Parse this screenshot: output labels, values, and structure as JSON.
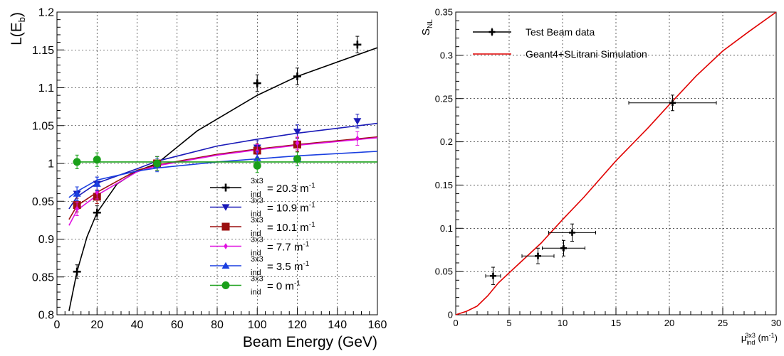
{
  "chart_data": [
    {
      "type": "scatter",
      "xlabel": "Beam Energy (GeV)",
      "ylabel": "L(E_b)",
      "xlim": [
        0,
        160
      ],
      "ylim": [
        0.8,
        1.2
      ],
      "xticks": [
        0,
        20,
        40,
        60,
        80,
        100,
        120,
        140,
        160
      ],
      "yticks": [
        0.8,
        0.85,
        0.9,
        0.95,
        1,
        1.05,
        1.1,
        1.15,
        1.2
      ],
      "grid": true,
      "legend_placement": "bottom-right",
      "legend_entry_prefix": "3x3",
      "legend_entry_subscript": "ind",
      "series": [
        {
          "name": "= 20.3 m-1",
          "color": "#000000",
          "marker": "cross",
          "points": [
            {
              "x": 10,
              "y": 0.857,
              "yerr": 0.009
            },
            {
              "x": 20,
              "y": 0.935,
              "yerr": 0.009
            },
            {
              "x": 50,
              "y": 1.0,
              "yerr": 0.009
            },
            {
              "x": 100,
              "y": 1.106,
              "yerr": 0.011
            },
            {
              "x": 120,
              "y": 1.115,
              "yerr": 0.011
            },
            {
              "x": 150,
              "y": 1.157,
              "yerr": 0.011
            }
          ],
          "curve": [
            [
              6,
              0.805
            ],
            [
              10,
              0.857
            ],
            [
              15,
              0.903
            ],
            [
              20,
              0.935
            ],
            [
              30,
              0.973
            ],
            [
              40,
              0.99
            ],
            [
              50,
              1.0
            ],
            [
              70,
              1.043
            ],
            [
              100,
              1.09
            ],
            [
              120,
              1.115
            ],
            [
              160,
              1.153
            ]
          ]
        },
        {
          "name": "= 10.9 m-1",
          "color": "#1a1ab8",
          "marker": "triangle-down",
          "points": [
            {
              "x": 10,
              "y": 0.96,
              "yerr": 0.009
            },
            {
              "x": 20,
              "y": 0.973,
              "yerr": 0.009
            },
            {
              "x": 50,
              "y": 1.0,
              "yerr": 0.009
            },
            {
              "x": 100,
              "y": 1.021,
              "yerr": 0.009
            },
            {
              "x": 120,
              "y": 1.042,
              "yerr": 0.009
            },
            {
              "x": 150,
              "y": 1.056,
              "yerr": 0.009
            }
          ],
          "curve": [
            [
              6,
              0.94
            ],
            [
              10,
              0.956
            ],
            [
              20,
              0.974
            ],
            [
              40,
              0.993
            ],
            [
              50,
              1.003
            ],
            [
              80,
              1.023
            ],
            [
              100,
              1.032
            ],
            [
              120,
              1.04
            ],
            [
              160,
              1.053
            ]
          ]
        },
        {
          "name": "= 10.1 m-1",
          "color": "#9b0f0f",
          "marker": "square",
          "points": [
            {
              "x": 10,
              "y": 0.945,
              "yerr": 0.009
            },
            {
              "x": 20,
              "y": 0.956,
              "yerr": 0.009
            },
            {
              "x": 50,
              "y": 1.0,
              "yerr": 0.009
            },
            {
              "x": 100,
              "y": 1.017,
              "yerr": 0.009
            },
            {
              "x": 120,
              "y": 1.025,
              "yerr": 0.009
            }
          ],
          "curve": [
            [
              6,
              0.926
            ],
            [
              10,
              0.944
            ],
            [
              20,
              0.962
            ],
            [
              40,
              0.991
            ],
            [
              50,
              0.998
            ],
            [
              80,
              1.012
            ],
            [
              100,
              1.019
            ],
            [
              120,
              1.025
            ],
            [
              160,
              1.035
            ]
          ]
        },
        {
          "name": "= 7.7 m-1",
          "color": "#e010e0",
          "marker": "diamond",
          "points": [
            {
              "x": 10,
              "y": 0.94,
              "yerr": 0.009
            },
            {
              "x": 20,
              "y": 0.962,
              "yerr": 0.009
            },
            {
              "x": 50,
              "y": 1.0,
              "yerr": 0.009
            },
            {
              "x": 100,
              "y": 1.016,
              "yerr": 0.009
            },
            {
              "x": 120,
              "y": 1.027,
              "yerr": 0.009
            },
            {
              "x": 150,
              "y": 1.033,
              "yerr": 0.009
            }
          ],
          "curve": [
            [
              6,
              0.918
            ],
            [
              10,
              0.938
            ],
            [
              20,
              0.958
            ],
            [
              40,
              0.989
            ],
            [
              50,
              0.997
            ],
            [
              80,
              1.011
            ],
            [
              100,
              1.018
            ],
            [
              120,
              1.024
            ],
            [
              160,
              1.034
            ]
          ]
        },
        {
          "name": "= 3.5 m-1",
          "color": "#1a3fe0",
          "marker": "triangle-up",
          "points": [
            {
              "x": 10,
              "y": 0.96,
              "yerr": 0.009
            },
            {
              "x": 20,
              "y": 0.973,
              "yerr": 0.009
            },
            {
              "x": 50,
              "y": 0.998,
              "yerr": 0.009
            },
            {
              "x": 100,
              "y": 1.007,
              "yerr": 0.009
            },
            {
              "x": 120,
              "y": 1.006,
              "yerr": 0.009
            }
          ],
          "curve": [
            [
              6,
              0.955
            ],
            [
              10,
              0.963
            ],
            [
              20,
              0.978
            ],
            [
              40,
              0.99
            ],
            [
              50,
              0.994
            ],
            [
              80,
              1.002
            ],
            [
              100,
              1.006
            ],
            [
              120,
              1.01
            ],
            [
              160,
              1.016
            ]
          ]
        },
        {
          "name": "= 0 m-1",
          "color": "#1aa01a",
          "marker": "circle",
          "points": [
            {
              "x": 10,
              "y": 1.002,
              "yerr": 0.009
            },
            {
              "x": 20,
              "y": 1.005,
              "yerr": 0.009
            },
            {
              "x": 50,
              "y": 1.0,
              "yerr": 0.009
            },
            {
              "x": 100,
              "y": 0.997,
              "yerr": 0.009
            },
            {
              "x": 120,
              "y": 1.006,
              "yerr": 0.009
            }
          ],
          "curve": [
            [
              8,
              1.002
            ],
            [
              160,
              1.002
            ]
          ]
        }
      ]
    },
    {
      "type": "scatter",
      "xlabel": "μ_ind^3x3 (m^-1)",
      "ylabel": "S_NL",
      "xlim": [
        0,
        30
      ],
      "ylim": [
        0,
        0.35
      ],
      "xticks": [
        0,
        5,
        10,
        15,
        20,
        25,
        30
      ],
      "yticks": [
        0,
        0.05,
        0.1,
        0.15,
        0.2,
        0.25,
        0.3,
        0.35
      ],
      "grid": true,
      "legend_placement": "top-left",
      "series": [
        {
          "name": "Test Beam data",
          "color": "#000000",
          "marker": "cross",
          "points": [
            {
              "x": 3.5,
              "y": 0.045,
              "xerr": 0.7,
              "yerr": 0.01
            },
            {
              "x": 7.7,
              "y": 0.068,
              "xerr": 1.5,
              "yerr": 0.009
            },
            {
              "x": 10.1,
              "y": 0.077,
              "xerr": 2.0,
              "yerr": 0.009
            },
            {
              "x": 10.9,
              "y": 0.095,
              "xerr": 2.2,
              "yerr": 0.01
            },
            {
              "x": 20.3,
              "y": 0.245,
              "xerr": 4.1,
              "yerr": 0.009
            }
          ]
        },
        {
          "name": "Geant4+SLitrani Simulation",
          "color": "#e00000",
          "marker": "line",
          "curve": [
            [
              0,
              0
            ],
            [
              1,
              0.004
            ],
            [
              2,
              0.01
            ],
            [
              3,
              0.022
            ],
            [
              4,
              0.037
            ],
            [
              6,
              0.06
            ],
            [
              8,
              0.083
            ],
            [
              10,
              0.11
            ],
            [
              12,
              0.136
            ],
            [
              15,
              0.178
            ],
            [
              18,
              0.216
            ],
            [
              20,
              0.243
            ],
            [
              22.5,
              0.276
            ],
            [
              25,
              0.305
            ],
            [
              27.5,
              0.328
            ],
            [
              30,
              0.35
            ]
          ]
        }
      ]
    }
  ]
}
